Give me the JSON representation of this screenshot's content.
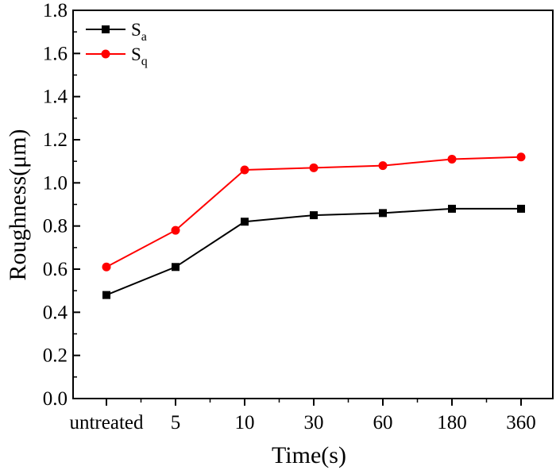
{
  "chart_data": {
    "type": "line",
    "categories": [
      "untreated",
      "5",
      "10",
      "30",
      "60",
      "180",
      "360"
    ],
    "xlabel": "Time(s)",
    "ylabel": "Roughness(μm)",
    "ylim": [
      0,
      1.8
    ],
    "yticks": [
      0.0,
      0.2,
      0.4,
      0.6,
      0.8,
      1.0,
      1.2,
      1.4,
      1.6,
      1.8
    ],
    "ytick_labels": [
      "0.0",
      "0.2",
      "0.4",
      "0.6",
      "0.8",
      "1.0",
      "1.2",
      "1.4",
      "1.6",
      "1.8"
    ],
    "grid": false,
    "legend_position": "top-left",
    "series": [
      {
        "name_main": "S",
        "name_sub": "a",
        "marker": "square",
        "color": "#000000",
        "values": [
          0.48,
          0.61,
          0.82,
          0.85,
          0.86,
          0.88,
          0.88
        ]
      },
      {
        "name_main": "S",
        "name_sub": "q",
        "marker": "circle",
        "color": "#ff0000",
        "values": [
          0.61,
          0.78,
          1.06,
          1.07,
          1.08,
          1.11,
          1.12
        ]
      }
    ]
  }
}
